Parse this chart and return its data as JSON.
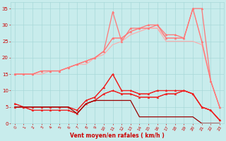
{
  "background_color": "#c8ecec",
  "grid_color": "#a8d8d8",
  "text_color": "#cc0000",
  "xlabel": "Vent moyen/en rafales ( km/h )",
  "x_ticks": [
    0,
    1,
    2,
    3,
    4,
    5,
    6,
    7,
    8,
    9,
    10,
    11,
    12,
    13,
    14,
    15,
    16,
    17,
    18,
    19,
    20,
    21,
    22,
    23
  ],
  "ylim": [
    0,
    37
  ],
  "yticks": [
    0,
    5,
    10,
    15,
    20,
    25,
    30,
    35
  ],
  "lines": [
    {
      "color": "#ffaaaa",
      "lw": 0.8,
      "marker": null,
      "x": [
        0,
        1,
        2,
        3,
        4,
        5,
        6,
        7,
        8,
        9,
        10,
        11,
        12,
        13,
        14,
        15,
        16,
        17,
        18,
        19,
        20,
        21,
        22,
        23
      ],
      "y": [
        15,
        15,
        15,
        15,
        16,
        16,
        17,
        18,
        19,
        20,
        22,
        26,
        26,
        28,
        29,
        29,
        29,
        26,
        26,
        26,
        35,
        25,
        13,
        5
      ]
    },
    {
      "color": "#ffaaaa",
      "lw": 0.8,
      "marker": null,
      "x": [
        0,
        1,
        2,
        3,
        4,
        5,
        6,
        7,
        8,
        9,
        10,
        11,
        12,
        13,
        14,
        15,
        16,
        17,
        18,
        19,
        20,
        21,
        22,
        23
      ],
      "y": [
        15,
        15,
        15,
        16,
        16,
        16,
        17,
        18,
        18,
        20,
        21,
        24,
        25,
        27,
        28,
        29,
        29,
        25,
        25,
        25,
        25,
        24,
        13,
        5
      ]
    },
    {
      "color": "#ff7777",
      "lw": 0.9,
      "marker": "^",
      "ms": 2.0,
      "x": [
        0,
        2,
        3,
        4,
        5,
        6,
        7,
        8,
        9,
        10,
        11,
        12,
        13,
        14,
        15,
        16,
        17,
        18,
        19,
        20,
        21,
        22,
        23
      ],
      "y": [
        15,
        15,
        16,
        16,
        16,
        17,
        18,
        19,
        20,
        22,
        26,
        26,
        28,
        29,
        29,
        30,
        26,
        26,
        26,
        35,
        25,
        13,
        5
      ]
    },
    {
      "color": "#ff7777",
      "lw": 0.9,
      "marker": "^",
      "ms": 2.0,
      "x": [
        0,
        1,
        2,
        3,
        4,
        5,
        6,
        7,
        8,
        9,
        10,
        11,
        12,
        13,
        14,
        15,
        16,
        17,
        18,
        19,
        20,
        21,
        22,
        23
      ],
      "y": [
        15,
        15,
        15,
        16,
        16,
        16,
        17,
        18,
        19,
        20,
        22,
        34,
        25,
        29,
        29,
        30,
        30,
        27,
        27,
        26,
        35,
        35,
        13,
        5
      ]
    },
    {
      "color": "#ee2222",
      "lw": 0.9,
      "marker": "^",
      "ms": 2.0,
      "x": [
        0,
        1,
        2,
        3,
        4,
        5,
        6,
        7,
        8,
        9,
        10,
        11,
        12,
        13,
        14,
        15,
        16,
        17,
        18,
        19,
        20,
        21,
        22,
        23
      ],
      "y": [
        6,
        5,
        5,
        5,
        5,
        5,
        5,
        4,
        7,
        8,
        11,
        15,
        10,
        10,
        9,
        9,
        10,
        10,
        10,
        10,
        9,
        5,
        4,
        1
      ]
    },
    {
      "color": "#ee2222",
      "lw": 0.9,
      "marker": "^",
      "ms": 2.0,
      "x": [
        0,
        1,
        2,
        3,
        4,
        5,
        6,
        7,
        8,
        9,
        10,
        11,
        12,
        13,
        14,
        15,
        16,
        17,
        18,
        19,
        20,
        21,
        22,
        23
      ],
      "y": [
        5,
        5,
        4,
        4,
        4,
        4,
        4,
        3,
        6,
        7,
        9,
        10,
        9,
        9,
        8,
        8,
        8,
        9,
        9,
        10,
        9,
        5,
        4,
        1
      ]
    },
    {
      "color": "#ee2222",
      "lw": 0.8,
      "marker": null,
      "x": [
        0,
        1,
        2,
        3,
        4,
        5,
        6,
        7,
        8,
        9,
        10,
        11,
        12,
        13,
        14,
        15,
        16,
        17,
        18,
        19,
        20,
        21,
        22,
        23
      ],
      "y": [
        5,
        5,
        4,
        4,
        4,
        4,
        4,
        3,
        6,
        7,
        9,
        10,
        9,
        9,
        8,
        8,
        8,
        9,
        9,
        10,
        9,
        5,
        4,
        1
      ]
    },
    {
      "color": "#ee2222",
      "lw": 0.8,
      "marker": null,
      "x": [
        0,
        1,
        2,
        3,
        4,
        5,
        6,
        7,
        8,
        9,
        10,
        11,
        12,
        13,
        14,
        15,
        16,
        17,
        18,
        19,
        20,
        21,
        22,
        23
      ],
      "y": [
        6,
        5,
        5,
        5,
        5,
        5,
        5,
        4,
        7,
        8,
        11,
        15,
        10,
        10,
        9,
        9,
        10,
        10,
        10,
        10,
        9,
        5,
        4,
        1
      ]
    },
    {
      "color": "#990000",
      "lw": 0.9,
      "marker": null,
      "x": [
        0,
        1,
        2,
        3,
        4,
        5,
        6,
        7,
        8,
        9,
        10,
        11,
        12,
        13,
        14,
        15,
        16,
        17,
        18,
        19,
        20,
        21,
        22,
        23
      ],
      "y": [
        5,
        5,
        5,
        5,
        5,
        5,
        5,
        3,
        6,
        7,
        7,
        7,
        7,
        7,
        2,
        2,
        2,
        2,
        2,
        2,
        2,
        0,
        0,
        0
      ]
    }
  ]
}
